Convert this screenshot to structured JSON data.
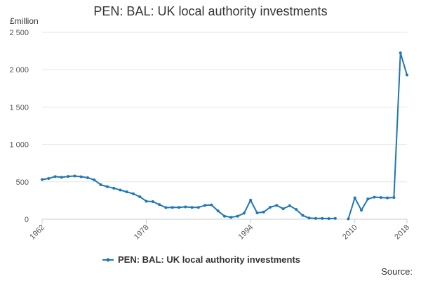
{
  "title": "PEN: BAL: UK local authority investments",
  "y_unit": "£million",
  "source": "Source:",
  "colors": {
    "series": "#1f77b4",
    "grid": "#e6e6e6",
    "axis": "#cccccc"
  },
  "chart_data": {
    "type": "line",
    "title": "PEN: BAL: UK local authority investments",
    "ylabel": "£million",
    "xlabel": "",
    "xlim": [
      1962,
      2018
    ],
    "ylim": [
      0,
      2500
    ],
    "grid": true,
    "legend_position": "bottom",
    "x_ticks": [
      1962,
      1978,
      1994,
      2010,
      2018
    ],
    "x_tick_labels": [
      "1962",
      "1978",
      "1994",
      "2010",
      "2018"
    ],
    "y_ticks": [
      0,
      500,
      1000,
      1500,
      2000,
      2500
    ],
    "y_tick_labels": [
      "0",
      "500",
      "1 000",
      "1 500",
      "2 000",
      "2 500"
    ],
    "series": [
      {
        "name": "PEN: BAL: UK local authority investments",
        "color": "#1f77b4",
        "segments": [
          {
            "x": [
              1962,
              1963,
              1964,
              1965,
              1966,
              1967,
              1968,
              1969,
              1970,
              1971,
              1972,
              1973,
              1974,
              1975,
              1976,
              1977,
              1978,
              1979,
              1980,
              1981,
              1982,
              1983,
              1984,
              1985,
              1986,
              1987,
              1988,
              1989,
              1990,
              1991,
              1992,
              1993,
              1994,
              1995,
              1996,
              1997,
              1998,
              1999,
              2000,
              2001,
              2002,
              2003,
              2004,
              2005,
              2006,
              2007
            ],
            "y": [
              530,
              545,
              570,
              560,
              572,
              578,
              568,
              555,
              525,
              460,
              435,
              415,
              390,
              365,
              340,
              300,
              240,
              235,
              195,
              155,
              158,
              158,
              165,
              158,
              158,
              185,
              190,
              110,
              40,
              25,
              40,
              80,
              255,
              85,
              95,
              160,
              185,
              140,
              180,
              130,
              50,
              15,
              10,
              10,
              8,
              10
            ]
          },
          {
            "x": [
              2009,
              2010,
              2011,
              2012,
              2013,
              2014,
              2015,
              2016,
              2017,
              2018
            ],
            "y": [
              5,
              285,
              120,
              270,
              295,
              290,
              285,
              290,
              2225,
              1930
            ]
          }
        ]
      }
    ]
  }
}
